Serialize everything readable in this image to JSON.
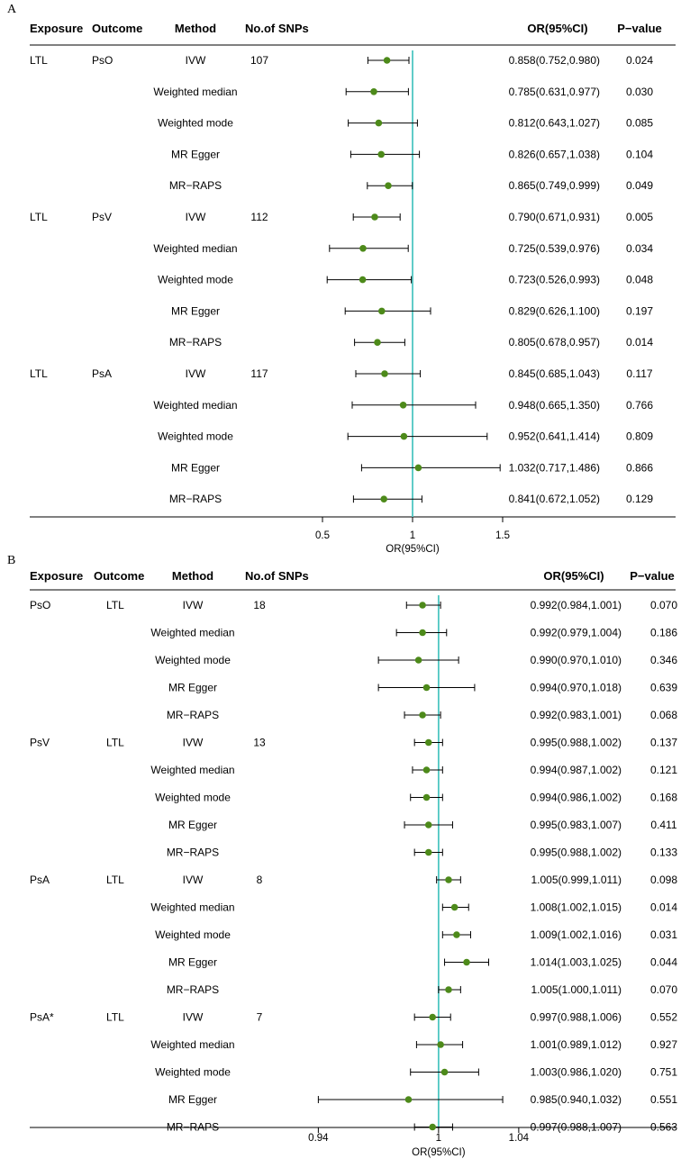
{
  "chart_data": [
    {
      "type": "forest",
      "panel_label": "A",
      "headers": {
        "exposure": "Exposure",
        "outcome": "Outcome",
        "method": "Method",
        "nsnps": "No.of SNPs",
        "or": "OR(95%CI)",
        "p": "P−value"
      },
      "xlabel": "OR(95%CI)",
      "xticks": [
        0.5,
        1,
        1.5
      ],
      "xtick_labels": [
        "0.5",
        "1",
        "1.5"
      ],
      "xlim": [
        0.4,
        1.52
      ],
      "ref_line": 1,
      "rows": [
        {
          "exposure": "LTL",
          "outcome": "PsO",
          "method": "IVW",
          "nsnps": "107",
          "or": 0.858,
          "lo": 0.752,
          "hi": 0.98,
          "or_text": "0.858(0.752,0.980)",
          "p": "0.024"
        },
        {
          "exposure": "",
          "outcome": "",
          "method": "Weighted median",
          "nsnps": "",
          "or": 0.785,
          "lo": 0.631,
          "hi": 0.977,
          "or_text": "0.785(0.631,0.977)",
          "p": "0.030"
        },
        {
          "exposure": "",
          "outcome": "",
          "method": "Weighted mode",
          "nsnps": "",
          "or": 0.812,
          "lo": 0.643,
          "hi": 1.027,
          "or_text": "0.812(0.643,1.027)",
          "p": "0.085"
        },
        {
          "exposure": "",
          "outcome": "",
          "method": "MR Egger",
          "nsnps": "",
          "or": 0.826,
          "lo": 0.657,
          "hi": 1.038,
          "or_text": "0.826(0.657,1.038)",
          "p": "0.104"
        },
        {
          "exposure": "",
          "outcome": "",
          "method": "MR−RAPS",
          "nsnps": "",
          "or": 0.865,
          "lo": 0.749,
          "hi": 0.999,
          "or_text": "0.865(0.749,0.999)",
          "p": "0.049"
        },
        {
          "exposure": "LTL",
          "outcome": "PsV",
          "method": "IVW",
          "nsnps": "112",
          "or": 0.79,
          "lo": 0.671,
          "hi": 0.931,
          "or_text": "0.790(0.671,0.931)",
          "p": "0.005"
        },
        {
          "exposure": "",
          "outcome": "",
          "method": "Weighted median",
          "nsnps": "",
          "or": 0.725,
          "lo": 0.539,
          "hi": 0.976,
          "or_text": "0.725(0.539,0.976)",
          "p": "0.034"
        },
        {
          "exposure": "",
          "outcome": "",
          "method": "Weighted mode",
          "nsnps": "",
          "or": 0.723,
          "lo": 0.526,
          "hi": 0.993,
          "or_text": "0.723(0.526,0.993)",
          "p": "0.048"
        },
        {
          "exposure": "",
          "outcome": "",
          "method": "MR Egger",
          "nsnps": "",
          "or": 0.829,
          "lo": 0.626,
          "hi": 1.1,
          "or_text": "0.829(0.626,1.100)",
          "p": "0.197"
        },
        {
          "exposure": "",
          "outcome": "",
          "method": "MR−RAPS",
          "nsnps": "",
          "or": 0.805,
          "lo": 0.678,
          "hi": 0.957,
          "or_text": "0.805(0.678,0.957)",
          "p": "0.014"
        },
        {
          "exposure": "LTL",
          "outcome": "PsA",
          "method": "IVW",
          "nsnps": "117",
          "or": 0.845,
          "lo": 0.685,
          "hi": 1.043,
          "or_text": "0.845(0.685,1.043)",
          "p": "0.117"
        },
        {
          "exposure": "",
          "outcome": "",
          "method": "Weighted median",
          "nsnps": "",
          "or": 0.948,
          "lo": 0.665,
          "hi": 1.35,
          "or_text": "0.948(0.665,1.350)",
          "p": "0.766"
        },
        {
          "exposure": "",
          "outcome": "",
          "method": "Weighted mode",
          "nsnps": "",
          "or": 0.952,
          "lo": 0.641,
          "hi": 1.414,
          "or_text": "0.952(0.641,1.414)",
          "p": "0.809"
        },
        {
          "exposure": "",
          "outcome": "",
          "method": "MR Egger",
          "nsnps": "",
          "or": 1.032,
          "lo": 0.717,
          "hi": 1.486,
          "or_text": "1.032(0.717,1.486)",
          "p": "0.866"
        },
        {
          "exposure": "",
          "outcome": "",
          "method": "MR−RAPS",
          "nsnps": "",
          "or": 0.841,
          "lo": 0.672,
          "hi": 1.052,
          "or_text": "0.841(0.672,1.052)",
          "p": "0.129"
        }
      ]
    },
    {
      "type": "forest",
      "panel_label": "B",
      "headers": {
        "exposure": "Exposure",
        "outcome": "Outcome",
        "method": "Method",
        "nsnps": "No.of SNPs",
        "or": "OR(95%CI)",
        "p": "P−value"
      },
      "xlabel": "OR(95%CI)",
      "xticks": [
        0.94,
        1,
        1.04
      ],
      "xtick_labels": [
        "0.94",
        "1",
        "1.04"
      ],
      "xlim": [
        0.925,
        1.045
      ],
      "ref_line": 1,
      "rows": [
        {
          "exposure": "PsO",
          "outcome": "LTL",
          "method": "IVW",
          "nsnps": "18",
          "or": 0.992,
          "lo": 0.984,
          "hi": 1.001,
          "or_text": "0.992(0.984,1.001)",
          "p": "0.070"
        },
        {
          "exposure": "",
          "outcome": "",
          "method": "Weighted median",
          "nsnps": "",
          "or": 0.992,
          "lo": 0.979,
          "hi": 1.004,
          "or_text": "0.992(0.979,1.004)",
          "p": "0.186"
        },
        {
          "exposure": "",
          "outcome": "",
          "method": "Weighted mode",
          "nsnps": "",
          "or": 0.99,
          "lo": 0.97,
          "hi": 1.01,
          "or_text": "0.990(0.970,1.010)",
          "p": "0.346"
        },
        {
          "exposure": "",
          "outcome": "",
          "method": "MR Egger",
          "nsnps": "",
          "or": 0.994,
          "lo": 0.97,
          "hi": 1.018,
          "or_text": "0.994(0.970,1.018)",
          "p": "0.639"
        },
        {
          "exposure": "",
          "outcome": "",
          "method": "MR−RAPS",
          "nsnps": "",
          "or": 0.992,
          "lo": 0.983,
          "hi": 1.001,
          "or_text": "0.992(0.983,1.001)",
          "p": "0.068"
        },
        {
          "exposure": "PsV",
          "outcome": "LTL",
          "method": "IVW",
          "nsnps": "13",
          "or": 0.995,
          "lo": 0.988,
          "hi": 1.002,
          "or_text": "0.995(0.988,1.002)",
          "p": "0.137"
        },
        {
          "exposure": "",
          "outcome": "",
          "method": "Weighted median",
          "nsnps": "",
          "or": 0.994,
          "lo": 0.987,
          "hi": 1.002,
          "or_text": "0.994(0.987,1.002)",
          "p": "0.121"
        },
        {
          "exposure": "",
          "outcome": "",
          "method": "Weighted mode",
          "nsnps": "",
          "or": 0.994,
          "lo": 0.986,
          "hi": 1.002,
          "or_text": "0.994(0.986,1.002)",
          "p": "0.168"
        },
        {
          "exposure": "",
          "outcome": "",
          "method": "MR Egger",
          "nsnps": "",
          "or": 0.995,
          "lo": 0.983,
          "hi": 1.007,
          "or_text": "0.995(0.983,1.007)",
          "p": "0.411"
        },
        {
          "exposure": "",
          "outcome": "",
          "method": "MR−RAPS",
          "nsnps": "",
          "or": 0.995,
          "lo": 0.988,
          "hi": 1.002,
          "or_text": "0.995(0.988,1.002)",
          "p": "0.133"
        },
        {
          "exposure": "PsA",
          "outcome": "LTL",
          "method": "IVW",
          "nsnps": "8",
          "or": 1.005,
          "lo": 0.999,
          "hi": 1.011,
          "or_text": "1.005(0.999,1.011)",
          "p": "0.098"
        },
        {
          "exposure": "",
          "outcome": "",
          "method": "Weighted median",
          "nsnps": "",
          "or": 1.008,
          "lo": 1.002,
          "hi": 1.015,
          "or_text": "1.008(1.002,1.015)",
          "p": "0.014"
        },
        {
          "exposure": "",
          "outcome": "",
          "method": "Weighted mode",
          "nsnps": "",
          "or": 1.009,
          "lo": 1.002,
          "hi": 1.016,
          "or_text": "1.009(1.002,1.016)",
          "p": "0.031"
        },
        {
          "exposure": "",
          "outcome": "",
          "method": "MR Egger",
          "nsnps": "",
          "or": 1.014,
          "lo": 1.003,
          "hi": 1.025,
          "or_text": "1.014(1.003,1.025)",
          "p": "0.044"
        },
        {
          "exposure": "",
          "outcome": "",
          "method": "MR−RAPS",
          "nsnps": "",
          "or": 1.005,
          "lo": 1.0,
          "hi": 1.011,
          "or_text": "1.005(1.000,1.011)",
          "p": "0.070"
        },
        {
          "exposure": "PsA*",
          "outcome": "LTL",
          "method": "IVW",
          "nsnps": "7",
          "or": 0.997,
          "lo": 0.988,
          "hi": 1.006,
          "or_text": "0.997(0.988,1.006)",
          "p": "0.552"
        },
        {
          "exposure": "",
          "outcome": "",
          "method": "Weighted median",
          "nsnps": "",
          "or": 1.001,
          "lo": 0.989,
          "hi": 1.012,
          "or_text": "1.001(0.989,1.012)",
          "p": "0.927"
        },
        {
          "exposure": "",
          "outcome": "",
          "method": "Weighted mode",
          "nsnps": "",
          "or": 1.003,
          "lo": 0.986,
          "hi": 1.02,
          "or_text": "1.003(0.986,1.020)",
          "p": "0.751"
        },
        {
          "exposure": "",
          "outcome": "",
          "method": "MR Egger",
          "nsnps": "",
          "or": 0.985,
          "lo": 0.94,
          "hi": 1.032,
          "or_text": "0.985(0.940,1.032)",
          "p": "0.551"
        },
        {
          "exposure": "",
          "outcome": "",
          "method": "MR−RAPS",
          "nsnps": "",
          "or": 0.997,
          "lo": 0.988,
          "hi": 1.007,
          "or_text": "0.997(0.988,1.007)",
          "p": "0.563"
        }
      ]
    }
  ],
  "colors": {
    "point": "#4d8a1a",
    "ref_line": "#4fc6c2",
    "axis": "#000000"
  }
}
